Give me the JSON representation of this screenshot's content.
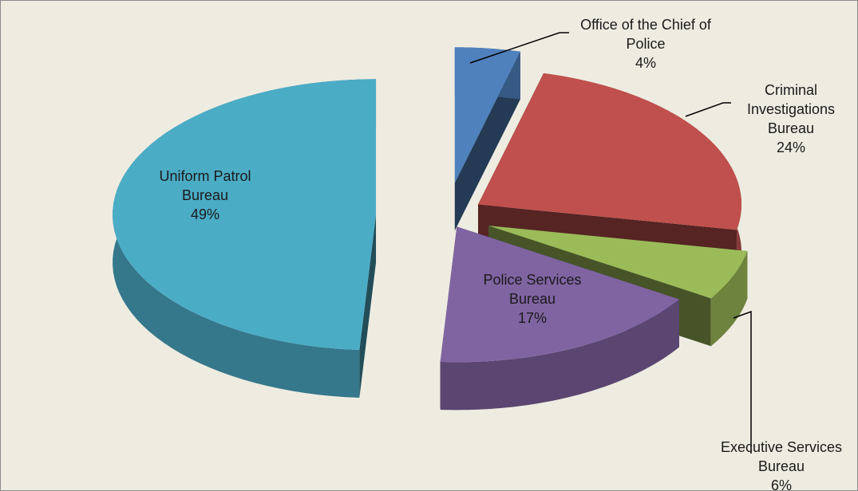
{
  "chart_data": {
    "type": "pie",
    "categories": [
      "Office of the Chief of Police",
      "Criminal Investigations Bureau",
      "Executive Services Bureau",
      "Police Services Bureau",
      "Uniform Patrol Bureau"
    ],
    "values": [
      4,
      24,
      6,
      17,
      49
    ],
    "value_labels": [
      "4%",
      "24%",
      "6%",
      "17%",
      "49%"
    ],
    "colors": [
      "#4f81bd",
      "#c0504d",
      "#9bbb59",
      "#8064a2",
      "#4bacc6"
    ]
  }
}
